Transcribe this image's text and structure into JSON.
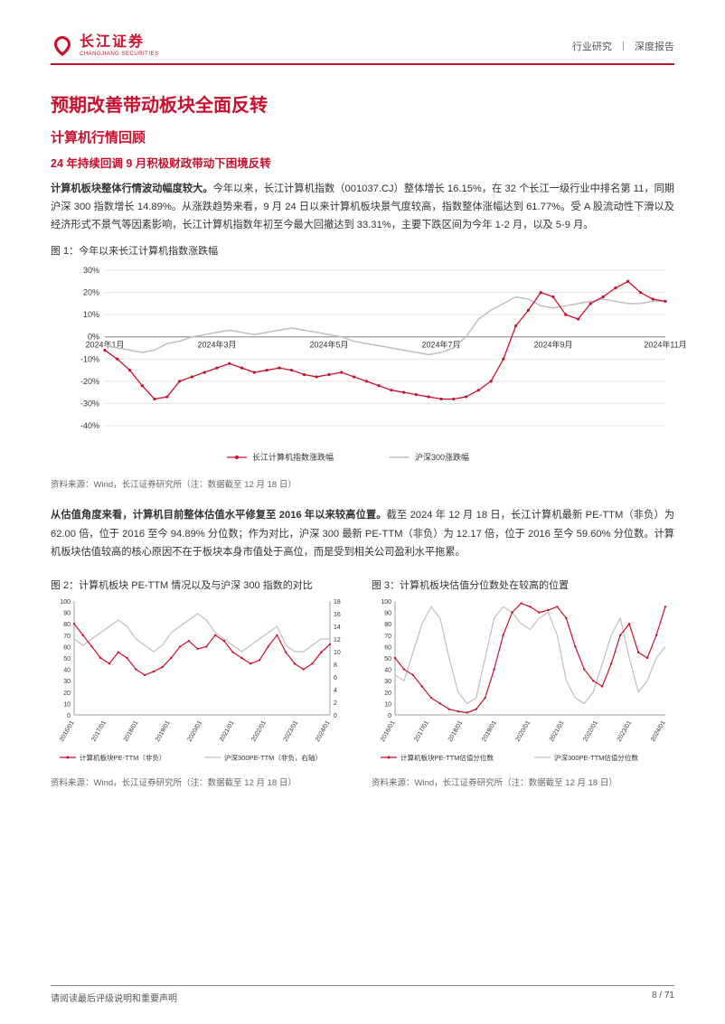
{
  "header": {
    "logo_cn": "长江证券",
    "logo_en": "CHANGJIANG SECURITIES",
    "right_1": "行业研究",
    "right_2": "深度报告"
  },
  "titles": {
    "h1": "预期改善带动板块全面反转",
    "h2": "计算机行情回顾",
    "h3": "24 年持续回调 9 月积极财政带动下困境反转"
  },
  "para1_bold": "计算机板块整体行情波动幅度较大。",
  "para1": "今年以来，长江计算机指数（001037.CJ）整体增长 16.15%，在 32 个长江一级行业中排名第 11，同期沪深 300 指数增长 14.89%。从涨跌趋势来看，9 月 24 日以来计算机板块景气度较高，指数整体涨幅达到 61.77%。受 A 股流动性下滑以及经济形式不景气等因素影响，长江计算机指数年初至今最大回撤达到 33.31%，主要下跌区间为今年 1-2 月，以及 5-9 月。",
  "fig1": {
    "caption": "图 1：今年以来长江计算机指数涨跌幅",
    "source": "资料来源：Wind，长江证券研究所（注：数据截至 12 月 18 日）",
    "x_labels": [
      "2024年1月",
      "2024年3月",
      "2024年5月",
      "2024年7月",
      "2024年9月",
      "2024年11月"
    ],
    "y_ticks": [
      -40,
      -30,
      -20,
      -10,
      0,
      10,
      20,
      30
    ],
    "ylim": [
      -40,
      30
    ],
    "series": [
      {
        "name": "长江计算机指数涨跌幅",
        "color": "#c8102e",
        "marker": "circle"
      },
      {
        "name": "沪深300涨跌幅",
        "color": "#bfbfbf",
        "marker": "none"
      }
    ],
    "legend_pos": "bottom",
    "grid_color": "#e5e5e5",
    "background": "#ffffff",
    "data_red": [
      -6,
      -10,
      -15,
      -22,
      -28,
      -27,
      -20,
      -18,
      -16,
      -14,
      -12,
      -14,
      -16,
      -15,
      -14,
      -15,
      -17,
      -18,
      -17,
      -16,
      -18,
      -20,
      -22,
      -24,
      -25,
      -26,
      -27,
      -28,
      -28,
      -27,
      -24,
      -20,
      -10,
      5,
      12,
      20,
      18,
      10,
      8,
      15,
      18,
      22,
      25,
      20,
      17,
      16
    ],
    "data_grey": [
      -4,
      -5,
      -6,
      -7,
      -6,
      -3,
      -2,
      0,
      1,
      2,
      3,
      2,
      1,
      2,
      3,
      4,
      3,
      2,
      1,
      0,
      -2,
      -3,
      -4,
      -5,
      -6,
      -7,
      -8,
      -7,
      -5,
      0,
      8,
      12,
      15,
      18,
      17,
      14,
      13,
      14,
      15,
      16,
      17,
      16,
      15,
      15,
      16,
      16
    ]
  },
  "para2_bold": "从估值角度来看，计算机目前整体估值水平修复至 2016 年以来较高位置。",
  "para2": "截至 2024 年 12 月 18 日，长江计算机最新 PE-TTM（非负）为 62.00 倍，位于 2016 至今 94.89% 分位数；作为对比，沪深 300 最新 PE-TTM（非负）为 12.17 倍，位于 2016 至今 59.60% 分位数。计算机板块估值较高的核心原因不在于板块本身市值处于高位，而是受到相关公司盈利水平拖累。",
  "fig2": {
    "caption": "图 2：计算机板块 PE-TTM 情况以及与沪深 300 指数的对比",
    "source": "资料来源：Wind，长江证券研究所（注：数据截至 12 月 18 日）",
    "x_labels": [
      "2016/01",
      "2017/01",
      "2018/01",
      "2019/01",
      "2020/01",
      "2021/01",
      "2022/01",
      "2023/01",
      "2024/01"
    ],
    "y_ticks_left": [
      0,
      10,
      20,
      30,
      40,
      50,
      60,
      70,
      80,
      90,
      100
    ],
    "y_ticks_right": [
      0,
      2,
      4,
      6,
      8,
      10,
      12,
      14,
      16,
      18
    ],
    "series": [
      {
        "name": "计算机板块PE-TTM（非负）",
        "color": "#c8102e"
      },
      {
        "name": "沪深300PE-TTM（非负，右轴）",
        "color": "#bfbfbf"
      }
    ],
    "data_red": [
      80,
      70,
      60,
      50,
      45,
      55,
      50,
      40,
      35,
      38,
      42,
      50,
      60,
      65,
      58,
      60,
      70,
      65,
      55,
      50,
      45,
      48,
      60,
      70,
      55,
      45,
      40,
      45,
      55,
      62
    ],
    "data_grey": [
      12,
      11,
      12,
      13,
      14,
      15,
      14,
      12,
      11,
      10,
      11,
      13,
      14,
      15,
      16,
      15,
      13,
      12,
      11,
      10,
      11,
      12,
      13,
      14,
      11,
      10,
      10,
      11,
      12,
      12
    ]
  },
  "fig3": {
    "caption": "图 3：计算机板块估值分位数处在较高的位置",
    "source": "资料来源：Wind，长江证券研究所（注：数据截至 12 月 18 日）",
    "x_labels": [
      "2016/01",
      "2017/01",
      "2018/01",
      "2019/01",
      "2020/01",
      "2021/01",
      "2022/01",
      "2023/01",
      "2024/01"
    ],
    "y_ticks": [
      0,
      10,
      20,
      30,
      40,
      50,
      60,
      70,
      80,
      90,
      100
    ],
    "series": [
      {
        "name": "计算机板块PE-TTM估值分位数",
        "color": "#c8102e"
      },
      {
        "name": "沪深300PE-TTM估值分位数",
        "color": "#bfbfbf"
      }
    ],
    "data_red": [
      50,
      40,
      35,
      25,
      15,
      10,
      5,
      3,
      2,
      5,
      15,
      40,
      70,
      90,
      98,
      95,
      90,
      92,
      95,
      85,
      60,
      40,
      30,
      25,
      45,
      70,
      80,
      55,
      50,
      70,
      95
    ],
    "data_grey": [
      35,
      30,
      55,
      80,
      95,
      85,
      50,
      20,
      10,
      15,
      50,
      85,
      95,
      90,
      80,
      75,
      85,
      90,
      70,
      30,
      15,
      10,
      20,
      45,
      70,
      85,
      50,
      20,
      30,
      50,
      60
    ]
  },
  "footer": {
    "left": "请阅读最后评级说明和重要声明",
    "right": "8 / 71"
  },
  "colors": {
    "brand": "#c8102e",
    "grey_line": "#bfbfbf",
    "grid": "#e5e5e5",
    "text": "#333333",
    "text_muted": "#666666"
  }
}
